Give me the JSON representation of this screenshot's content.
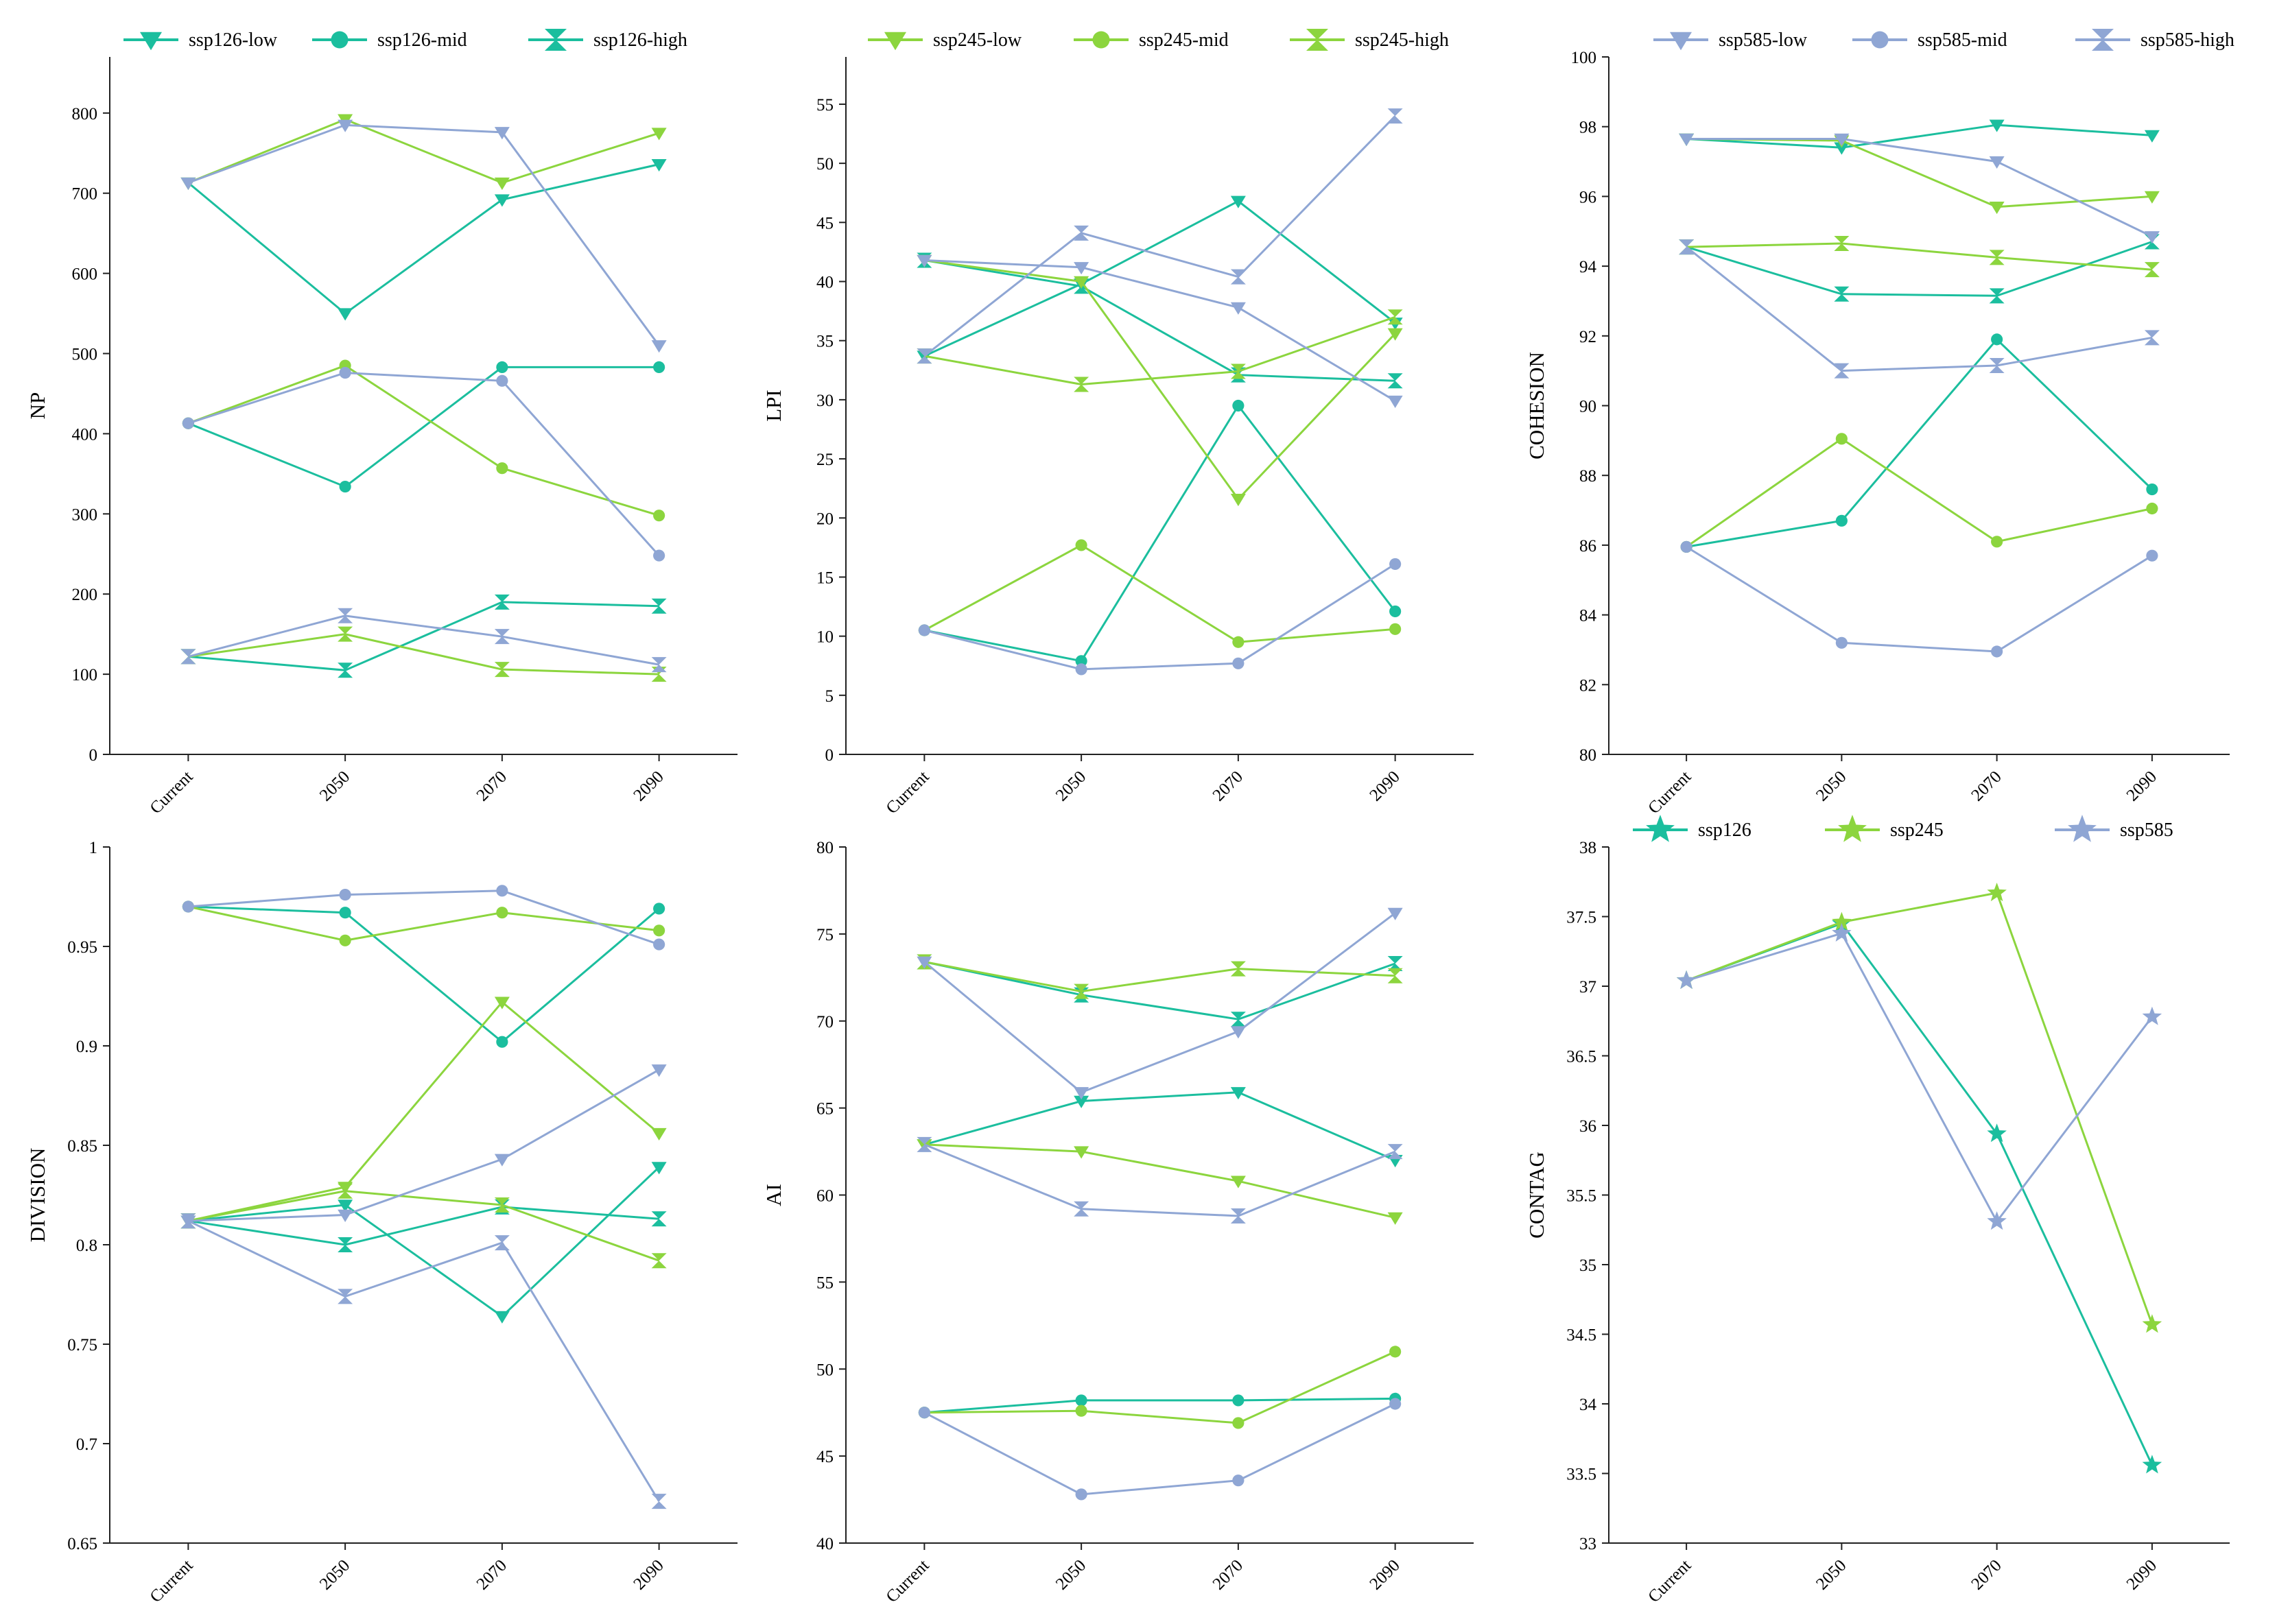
{
  "colors": {
    "ssp126": "#1BBE9E",
    "ssp245": "#8CD53E",
    "ssp585": "#8FA6D4"
  },
  "chart_data": [
    {
      "id": "np",
      "type": "line",
      "ylabel": "NP",
      "categories": [
        "Current",
        "2050",
        "2070",
        "2090"
      ],
      "ylim": [
        0,
        870
      ],
      "yticks": [
        0,
        100,
        200,
        300,
        400,
        500,
        600,
        700,
        800
      ],
      "legend": [
        "ssp126-low",
        "ssp126-mid",
        "ssp126-high"
      ],
      "series": [
        {
          "name": "ssp126-low",
          "scenario": "ssp126",
          "marker": "tri",
          "values": [
            713,
            550,
            692,
            736
          ]
        },
        {
          "name": "ssp126-mid",
          "scenario": "ssp126",
          "marker": "dot",
          "values": [
            413,
            334,
            483,
            483
          ]
        },
        {
          "name": "ssp126-high",
          "scenario": "ssp126",
          "marker": "hour",
          "values": [
            122,
            105,
            190,
            185
          ]
        },
        {
          "name": "ssp245-low",
          "scenario": "ssp245",
          "marker": "tri",
          "values": [
            713,
            792,
            713,
            775
          ]
        },
        {
          "name": "ssp245-mid",
          "scenario": "ssp245",
          "marker": "dot",
          "values": [
            413,
            485,
            357,
            298
          ]
        },
        {
          "name": "ssp245-high",
          "scenario": "ssp245",
          "marker": "hour",
          "values": [
            122,
            150,
            106,
            100
          ]
        },
        {
          "name": "ssp585-low",
          "scenario": "ssp585",
          "marker": "tri",
          "values": [
            713,
            785,
            776,
            510
          ]
        },
        {
          "name": "ssp585-mid",
          "scenario": "ssp585",
          "marker": "dot",
          "values": [
            413,
            476,
            466,
            248
          ]
        },
        {
          "name": "ssp585-high",
          "scenario": "ssp585",
          "marker": "hour",
          "values": [
            122,
            173,
            147,
            112
          ]
        }
      ]
    },
    {
      "id": "lpi",
      "type": "line",
      "ylabel": "LPI",
      "categories": [
        "Current",
        "2050",
        "2070",
        "2090"
      ],
      "ylim": [
        0,
        59
      ],
      "yticks": [
        0,
        5,
        10,
        15,
        20,
        25,
        30,
        35,
        40,
        45,
        50,
        55
      ],
      "legend": [
        "ssp245-low",
        "ssp245-mid",
        "ssp245-high"
      ],
      "series": [
        {
          "name": "ssp126-low",
          "scenario": "ssp126",
          "marker": "tri",
          "values": [
            33.7,
            39.8,
            46.8,
            36.5
          ]
        },
        {
          "name": "ssp126-mid",
          "scenario": "ssp126",
          "marker": "dot",
          "values": [
            10.5,
            7.9,
            29.5,
            12.1
          ]
        },
        {
          "name": "ssp126-high",
          "scenario": "ssp126",
          "marker": "hour",
          "values": [
            41.8,
            39.6,
            32.1,
            31.6
          ]
        },
        {
          "name": "ssp245-low",
          "scenario": "ssp245",
          "marker": "tri",
          "values": [
            41.8,
            40.0,
            21.6,
            35.6
          ]
        },
        {
          "name": "ssp245-mid",
          "scenario": "ssp245",
          "marker": "dot",
          "values": [
            10.5,
            17.7,
            9.5,
            10.6
          ]
        },
        {
          "name": "ssp245-high",
          "scenario": "ssp245",
          "marker": "hour",
          "values": [
            33.7,
            31.3,
            32.4,
            37.0
          ]
        },
        {
          "name": "ssp585-low",
          "scenario": "ssp585",
          "marker": "tri",
          "values": [
            41.8,
            41.2,
            37.8,
            29.9
          ]
        },
        {
          "name": "ssp585-mid",
          "scenario": "ssp585",
          "marker": "dot",
          "values": [
            10.5,
            7.2,
            7.7,
            16.1
          ]
        },
        {
          "name": "ssp585-high",
          "scenario": "ssp585",
          "marker": "hour",
          "values": [
            33.7,
            44.1,
            40.4,
            54.0
          ]
        }
      ]
    },
    {
      "id": "cohesion",
      "type": "line",
      "ylabel": "COHESION",
      "categories": [
        "Current",
        "2050",
        "2070",
        "2090"
      ],
      "ylim": [
        80,
        100
      ],
      "yticks": [
        80,
        82,
        84,
        86,
        88,
        90,
        92,
        94,
        96,
        98,
        100
      ],
      "legend": [
        "ssp585-low",
        "ssp585-mid",
        "ssp585-high"
      ],
      "series": [
        {
          "name": "ssp126-low",
          "scenario": "ssp126",
          "marker": "tri",
          "values": [
            97.65,
            97.4,
            98.05,
            97.75
          ]
        },
        {
          "name": "ssp126-mid",
          "scenario": "ssp126",
          "marker": "dot",
          "values": [
            85.95,
            86.7,
            91.9,
            87.6
          ]
        },
        {
          "name": "ssp126-high",
          "scenario": "ssp126",
          "marker": "hour",
          "values": [
            94.55,
            93.2,
            93.15,
            94.7
          ]
        },
        {
          "name": "ssp245-low",
          "scenario": "ssp245",
          "marker": "tri",
          "values": [
            97.65,
            97.6,
            95.7,
            96.0
          ]
        },
        {
          "name": "ssp245-mid",
          "scenario": "ssp245",
          "marker": "dot",
          "values": [
            85.95,
            89.05,
            86.1,
            87.05
          ]
        },
        {
          "name": "ssp245-high",
          "scenario": "ssp245",
          "marker": "hour",
          "values": [
            94.55,
            94.65,
            94.25,
            93.9
          ]
        },
        {
          "name": "ssp585-low",
          "scenario": "ssp585",
          "marker": "tri",
          "values": [
            97.65,
            97.65,
            97.0,
            94.85
          ]
        },
        {
          "name": "ssp585-mid",
          "scenario": "ssp585",
          "marker": "dot",
          "values": [
            85.95,
            83.2,
            82.95,
            85.7
          ]
        },
        {
          "name": "ssp585-high",
          "scenario": "ssp585",
          "marker": "hour",
          "values": [
            94.55,
            91.0,
            91.15,
            91.95
          ]
        }
      ]
    },
    {
      "id": "division",
      "type": "line",
      "ylabel": "DIVISION",
      "categories": [
        "Current",
        "2050",
        "2070",
        "2090"
      ],
      "ylim": [
        0.65,
        1.0
      ],
      "yticks": [
        0.65,
        0.7,
        0.75,
        0.8,
        0.85,
        0.9,
        0.95,
        1
      ],
      "ytick_labels": [
        "0.65",
        "0.7",
        "0.75",
        "0.8",
        "0.85",
        "0.9",
        "0.95",
        "1"
      ],
      "legend": [],
      "series": [
        {
          "name": "ssp126-low",
          "scenario": "ssp126",
          "marker": "tri",
          "values": [
            0.812,
            0.82,
            0.764,
            0.839
          ]
        },
        {
          "name": "ssp126-mid",
          "scenario": "ssp126",
          "marker": "dot",
          "values": [
            0.97,
            0.967,
            0.902,
            0.969
          ]
        },
        {
          "name": "ssp126-high",
          "scenario": "ssp126",
          "marker": "hour",
          "values": [
            0.812,
            0.8,
            0.819,
            0.813
          ]
        },
        {
          "name": "ssp245-low",
          "scenario": "ssp245",
          "marker": "tri",
          "values": [
            0.812,
            0.829,
            0.922,
            0.856
          ]
        },
        {
          "name": "ssp245-mid",
          "scenario": "ssp245",
          "marker": "dot",
          "values": [
            0.97,
            0.953,
            0.967,
            0.958
          ]
        },
        {
          "name": "ssp245-high",
          "scenario": "ssp245",
          "marker": "hour",
          "values": [
            0.812,
            0.827,
            0.82,
            0.792
          ]
        },
        {
          "name": "ssp585-low",
          "scenario": "ssp585",
          "marker": "tri",
          "values": [
            0.812,
            0.815,
            0.843,
            0.888
          ]
        },
        {
          "name": "ssp585-mid",
          "scenario": "ssp585",
          "marker": "dot",
          "values": [
            0.97,
            0.976,
            0.978,
            0.951
          ]
        },
        {
          "name": "ssp585-high",
          "scenario": "ssp585",
          "marker": "hour",
          "values": [
            0.812,
            0.774,
            0.801,
            0.671
          ]
        }
      ]
    },
    {
      "id": "ai",
      "type": "line",
      "ylabel": "AI",
      "categories": [
        "Current",
        "2050",
        "2070",
        "2090"
      ],
      "ylim": [
        40,
        80
      ],
      "yticks": [
        40,
        45,
        50,
        55,
        60,
        65,
        70,
        75,
        80
      ],
      "legend": [],
      "series": [
        {
          "name": "ssp126-low",
          "scenario": "ssp126",
          "marker": "tri",
          "values": [
            62.9,
            65.4,
            65.9,
            62.0
          ]
        },
        {
          "name": "ssp126-mid",
          "scenario": "ssp126",
          "marker": "dot",
          "values": [
            47.5,
            48.2,
            48.2,
            48.3
          ]
        },
        {
          "name": "ssp126-high",
          "scenario": "ssp126",
          "marker": "hour",
          "values": [
            73.4,
            71.5,
            70.1,
            73.3
          ]
        },
        {
          "name": "ssp245-low",
          "scenario": "ssp245",
          "marker": "tri",
          "values": [
            62.9,
            62.5,
            60.8,
            58.7
          ]
        },
        {
          "name": "ssp245-mid",
          "scenario": "ssp245",
          "marker": "dot",
          "values": [
            47.5,
            47.6,
            46.9,
            51.0
          ]
        },
        {
          "name": "ssp245-high",
          "scenario": "ssp245",
          "marker": "hour",
          "values": [
            73.4,
            71.7,
            73.0,
            72.6
          ]
        },
        {
          "name": "ssp585-low",
          "scenario": "ssp585",
          "marker": "tri",
          "values": [
            73.4,
            65.9,
            69.4,
            76.2
          ]
        },
        {
          "name": "ssp585-mid",
          "scenario": "ssp585",
          "marker": "dot",
          "values": [
            47.5,
            42.8,
            43.6,
            48.0
          ]
        },
        {
          "name": "ssp585-high",
          "scenario": "ssp585",
          "marker": "hour",
          "values": [
            62.9,
            59.2,
            58.8,
            62.5
          ]
        }
      ]
    },
    {
      "id": "contag",
      "type": "line",
      "ylabel": "CONTAG",
      "categories": [
        "Current",
        "2050",
        "2070",
        "2090"
      ],
      "ylim": [
        33,
        38
      ],
      "yticks": [
        33,
        33.5,
        34,
        34.5,
        35,
        35.5,
        36,
        36.5,
        37,
        37.5,
        38
      ],
      "legend": [
        "ssp126",
        "ssp245",
        "ssp585"
      ],
      "series": [
        {
          "name": "ssp126",
          "scenario": "ssp126",
          "marker": "star",
          "values": [
            37.04,
            37.45,
            35.94,
            33.56
          ]
        },
        {
          "name": "ssp245",
          "scenario": "ssp245",
          "marker": "star",
          "values": [
            37.04,
            37.46,
            37.67,
            34.57
          ]
        },
        {
          "name": "ssp585",
          "scenario": "ssp585",
          "marker": "star",
          "values": [
            37.04,
            37.38,
            35.31,
            36.78
          ]
        }
      ]
    }
  ]
}
